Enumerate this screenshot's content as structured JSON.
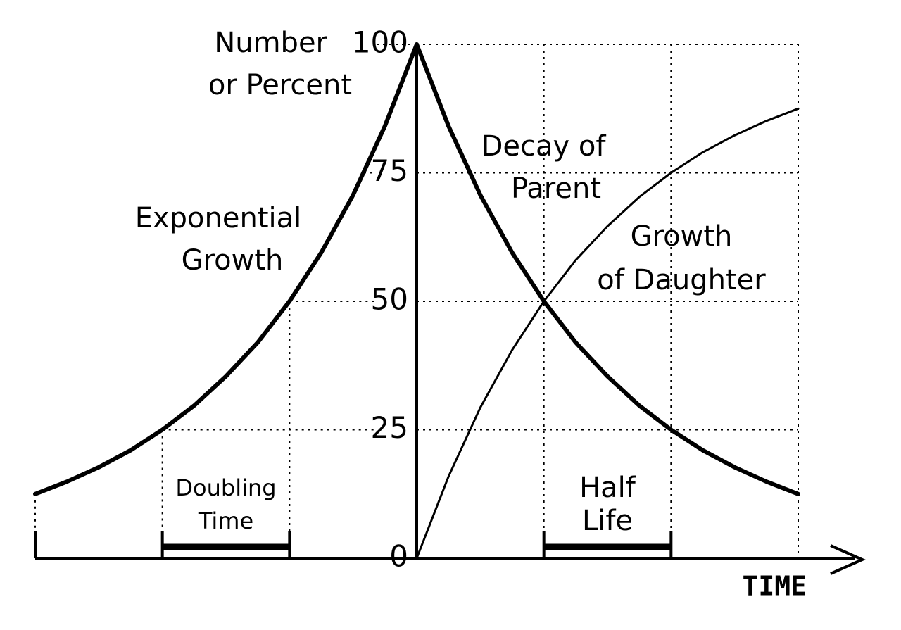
{
  "chart_data": {
    "type": "line",
    "ylabel": [
      "Number",
      "or Percent"
    ],
    "xlabel": "TIME",
    "xlim": [
      -3,
      3
    ],
    "xticks": [
      -3,
      -2,
      -1,
      0,
      1,
      2,
      3
    ],
    "ylim": [
      0,
      100
    ],
    "yticks": [
      0,
      25,
      50,
      75,
      100
    ],
    "grid": true,
    "series": [
      {
        "label": [
          "Exponential",
          "Growth"
        ],
        "color": "#000000",
        "weight": "heavy",
        "x": [
          -3,
          -2.75,
          -2.5,
          -2.25,
          -2,
          -1.75,
          -1.5,
          -1.25,
          -1,
          -0.75,
          -0.5,
          -0.25,
          0
        ],
        "values": [
          12.5,
          14.9,
          17.7,
          21.0,
          25,
          29.7,
          35.4,
          42.0,
          50,
          59.5,
          70.7,
          84.1,
          100
        ]
      },
      {
        "label": [
          "Decay of",
          "Parent"
        ],
        "color": "#000000",
        "weight": "heavy",
        "x": [
          0,
          0.25,
          0.5,
          0.75,
          1,
          1.25,
          1.5,
          1.75,
          2,
          2.25,
          2.5,
          2.75,
          3
        ],
        "values": [
          100,
          84.1,
          70.7,
          59.5,
          50,
          42.0,
          35.4,
          29.7,
          25,
          21.0,
          17.7,
          14.9,
          12.5
        ]
      },
      {
        "label": [
          "Growth",
          "of Daughter"
        ],
        "color": "#000000",
        "weight": "light",
        "x": [
          0,
          0.25,
          0.5,
          0.75,
          1,
          1.25,
          1.5,
          1.75,
          2,
          2.25,
          2.5,
          2.75,
          3
        ],
        "values": [
          0,
          15.9,
          29.3,
          40.5,
          50,
          58.0,
          64.6,
          70.3,
          75,
          79.0,
          82.3,
          85.1,
          87.5
        ]
      }
    ],
    "intervals": [
      {
        "label": [
          "Doubling",
          "Time"
        ],
        "x": [
          -2,
          -1
        ]
      },
      {
        "label": [
          "Half",
          "Life"
        ],
        "x": [
          1,
          2
        ]
      }
    ]
  }
}
